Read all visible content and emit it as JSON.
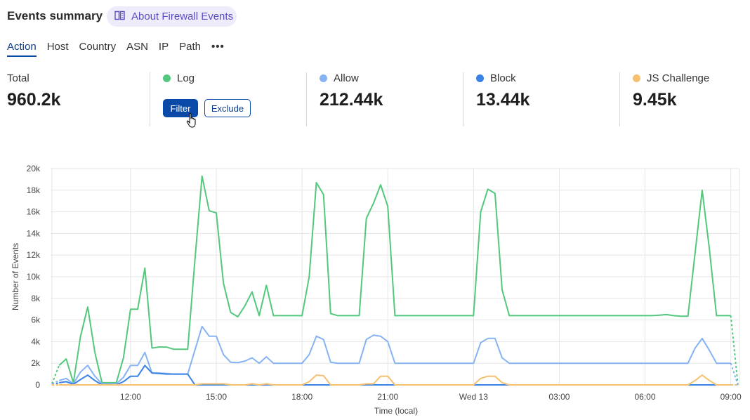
{
  "header": {
    "title": "Events summary",
    "about_link": {
      "label": "About Firewall Events",
      "icon": "book-icon"
    }
  },
  "tabs": [
    {
      "label": "Action",
      "active": true
    },
    {
      "label": "Host"
    },
    {
      "label": "Country"
    },
    {
      "label": "ASN"
    },
    {
      "label": "IP"
    },
    {
      "label": "Path"
    },
    {
      "label": "•••"
    }
  ],
  "stats": {
    "total": {
      "label": "Total",
      "value": "960.2k"
    },
    "items": [
      {
        "label": "Log",
        "value": "",
        "color": "#52c87c",
        "actions": {
          "filter": "Filter",
          "exclude": "Exclude"
        }
      },
      {
        "label": "Allow",
        "value": "212.44k",
        "color": "#86b3f3"
      },
      {
        "label": "Block",
        "value": "13.44k",
        "color": "#3b82e6"
      },
      {
        "label": "JS Challenge",
        "value": "9.45k",
        "color": "#f5c070"
      }
    ]
  },
  "chart_data": {
    "type": "line",
    "xlabel": "Time (local)",
    "ylabel": "Number of Events",
    "ylim": [
      0,
      20000
    ],
    "yticks": [
      "0",
      "2k",
      "4k",
      "6k",
      "8k",
      "10k",
      "12k",
      "14k",
      "16k",
      "18k",
      "20k"
    ],
    "xticks": [
      {
        "label": "12:00",
        "at": "12:00"
      },
      {
        "label": "15:00",
        "at": "15:00"
      },
      {
        "label": "18:00",
        "at": "18:00"
      },
      {
        "label": "21:00",
        "at": "21:00"
      },
      {
        "label": "Wed 13",
        "at": "00:00"
      },
      {
        "label": "03:00",
        "at": "03:00"
      },
      {
        "label": "06:00",
        "at": "06:00"
      },
      {
        "label": "09:00",
        "at": "09:00"
      }
    ],
    "grid": true,
    "x": [
      "09:15",
      "09:30",
      "09:45",
      "10:00",
      "10:15",
      "10:30",
      "10:45",
      "11:00",
      "11:15",
      "11:30",
      "11:45",
      "12:00",
      "12:15",
      "12:30",
      "12:45",
      "13:00",
      "13:15",
      "13:30",
      "13:45",
      "14:00",
      "14:15",
      "14:30",
      "14:45",
      "15:00",
      "15:15",
      "15:30",
      "15:45",
      "16:00",
      "16:15",
      "16:30",
      "16:45",
      "17:00",
      "17:15",
      "17:30",
      "17:45",
      "18:00",
      "18:15",
      "18:30",
      "18:45",
      "19:00",
      "19:15",
      "19:30",
      "19:45",
      "20:00",
      "20:15",
      "20:30",
      "20:45",
      "21:00",
      "21:15",
      "21:30",
      "21:45",
      "22:00",
      "22:15",
      "22:30",
      "22:45",
      "23:00",
      "23:15",
      "23:30",
      "23:45",
      "00:00",
      "00:15",
      "00:30",
      "00:45",
      "01:00",
      "01:15",
      "01:30",
      "01:45",
      "02:00",
      "02:15",
      "02:30",
      "02:45",
      "03:00",
      "03:15",
      "03:30",
      "03:45",
      "04:00",
      "04:15",
      "04:30",
      "04:45",
      "05:00",
      "05:15",
      "05:30",
      "05:45",
      "06:00",
      "06:15",
      "06:30",
      "06:45",
      "07:00",
      "07:15",
      "07:30",
      "07:45",
      "08:00",
      "08:15",
      "08:30",
      "08:45",
      "09:00",
      "09:15"
    ],
    "series": [
      {
        "name": "Log",
        "color": "#52c87c",
        "values": [
          100,
          1800,
          2400,
          200,
          4500,
          7200,
          3000,
          200,
          200,
          200,
          2500,
          7000,
          7000,
          10800,
          3400,
          3500,
          3500,
          3300,
          3300,
          3300,
          11500,
          19300,
          16100,
          15900,
          9400,
          6700,
          6300,
          7300,
          8600,
          6400,
          9200,
          6400,
          6400,
          6400,
          6400,
          6400,
          10000,
          18700,
          17600,
          6600,
          6400,
          6400,
          6400,
          6400,
          15400,
          16800,
          18500,
          16500,
          6400,
          6400,
          6400,
          6400,
          6400,
          6400,
          6400,
          6400,
          6400,
          6400,
          6400,
          6400,
          16000,
          18100,
          17700,
          8800,
          6400,
          6400,
          6400,
          6400,
          6400,
          6400,
          6400,
          6400,
          6400,
          6400,
          6400,
          6400,
          6400,
          6400,
          6400,
          6400,
          6400,
          6400,
          6400,
          6400,
          6400,
          6450,
          6500,
          6400,
          6350,
          6350,
          12200,
          18000,
          12600,
          6400,
          6400,
          6400,
          0
        ]
      },
      {
        "name": "Allow",
        "color": "#86b3f3",
        "values": [
          100,
          400,
          600,
          100,
          1200,
          1800,
          800,
          100,
          100,
          100,
          700,
          1800,
          1800,
          3000,
          1100,
          1100,
          1050,
          1000,
          1000,
          1000,
          3200,
          5400,
          4500,
          4500,
          2800,
          2100,
          2050,
          2200,
          2500,
          2000,
          2600,
          2000,
          2000,
          2000,
          2000,
          2000,
          2800,
          4500,
          4200,
          2100,
          2000,
          2000,
          2000,
          2000,
          4200,
          4600,
          4500,
          4000,
          2000,
          2000,
          2000,
          2000,
          2000,
          2000,
          2000,
          2000,
          2000,
          2000,
          2000,
          2000,
          3900,
          4300,
          4300,
          2500,
          2000,
          2000,
          2000,
          2000,
          2000,
          2000,
          2000,
          2000,
          2000,
          2000,
          2000,
          2000,
          2000,
          2000,
          2000,
          2000,
          2000,
          2000,
          2000,
          2000,
          2000,
          2000,
          2000,
          2000,
          2000,
          2000,
          3400,
          4300,
          3200,
          2000,
          2000,
          2000,
          0
        ]
      },
      {
        "name": "Block",
        "color": "#3b82e6",
        "values": [
          0,
          200,
          300,
          50,
          500,
          900,
          400,
          0,
          0,
          0,
          300,
          800,
          800,
          1800,
          1100,
          1050,
          1000,
          1000,
          1000,
          1000,
          0,
          0,
          0,
          0,
          0,
          0,
          0,
          0,
          0,
          0,
          0,
          0,
          0,
          0,
          0,
          0,
          0,
          0,
          0,
          0,
          0,
          0,
          0,
          0,
          0,
          0,
          0,
          0,
          0,
          0,
          0,
          0,
          0,
          0,
          0,
          0,
          0,
          0,
          0,
          0,
          0,
          0,
          0,
          0,
          0,
          0,
          0,
          0,
          0,
          0,
          0,
          0,
          0,
          0,
          0,
          0,
          0,
          0,
          0,
          0,
          0,
          0,
          0,
          0,
          0,
          0,
          0,
          0,
          0,
          0,
          0,
          0,
          0,
          0,
          0,
          0,
          0
        ]
      },
      {
        "name": "JS Challenge",
        "color": "#f5c070",
        "values": [
          0,
          0,
          0,
          0,
          0,
          0,
          0,
          0,
          0,
          0,
          0,
          0,
          0,
          0,
          0,
          0,
          0,
          0,
          0,
          0,
          0,
          100,
          100,
          100,
          100,
          0,
          0,
          0,
          100,
          0,
          100,
          0,
          0,
          0,
          0,
          0,
          300,
          900,
          850,
          0,
          0,
          0,
          0,
          0,
          100,
          100,
          800,
          800,
          0,
          0,
          0,
          0,
          0,
          0,
          0,
          0,
          0,
          0,
          0,
          0,
          600,
          800,
          800,
          200,
          0,
          0,
          0,
          0,
          0,
          0,
          0,
          0,
          0,
          0,
          0,
          0,
          0,
          0,
          0,
          0,
          0,
          0,
          0,
          0,
          0,
          0,
          0,
          0,
          0,
          0,
          400,
          900,
          400,
          0,
          0,
          0,
          0
        ]
      }
    ]
  }
}
